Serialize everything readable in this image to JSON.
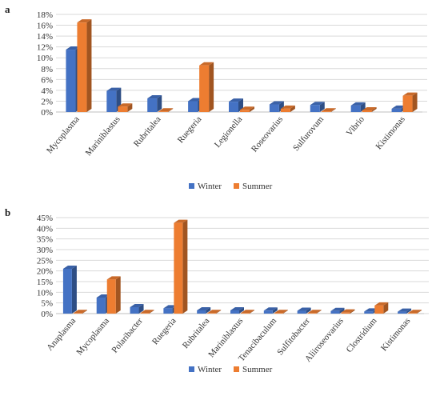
{
  "chart_data": [
    {
      "panel": "a",
      "type": "bar",
      "categories": [
        "Mycoplasma",
        "Mariniblastus",
        "Rubritalea",
        "Ruegeria",
        "Legionella",
        "Roseovarius",
        "Sulfurovum",
        "Vibrio",
        "Kistimonas"
      ],
      "series": [
        {
          "name": "Winter",
          "color": "#4472C4",
          "values": [
            11.5,
            3.9,
            2.5,
            2.0,
            1.9,
            1.4,
            1.3,
            1.2,
            0.6
          ]
        },
        {
          "name": "Summer",
          "color": "#ED7D31",
          "values": [
            16.5,
            1.0,
            0.1,
            8.6,
            0.4,
            0.6,
            0.1,
            0.3,
            3.0
          ]
        }
      ],
      "yticks": [
        "0%",
        "2%",
        "4%",
        "6%",
        "8%",
        "10%",
        "12%",
        "14%",
        "16%",
        "18%"
      ],
      "ylim": [
        0,
        18
      ],
      "grid": true,
      "legend_position": "bottom"
    },
    {
      "panel": "b",
      "type": "bar",
      "categories": [
        "Anaplasma",
        "Mycoplasma",
        "Polaribacter",
        "Ruegeria",
        "Rubritalea",
        "Mariniblastus",
        "Tenacibaculum",
        "Sulfitobacter",
        "Aliiroseovarius",
        "Clostridium",
        "Kistimonas"
      ],
      "series": [
        {
          "name": "Winter",
          "color": "#4472C4",
          "values": [
            21.0,
            7.5,
            3.0,
            2.5,
            1.5,
            1.5,
            1.4,
            1.3,
            1.2,
            1.0,
            0.9
          ]
        },
        {
          "name": "Summer",
          "color": "#ED7D31",
          "values": [
            0.1,
            16.0,
            0.2,
            42.5,
            0.1,
            0.2,
            0.1,
            0.1,
            0.5,
            3.8,
            0.1
          ]
        }
      ],
      "yticks": [
        "0%",
        "5%",
        "10%",
        "15%",
        "20%",
        "25%",
        "30%",
        "35%",
        "40%",
        "45%"
      ],
      "ylim": [
        0,
        45
      ],
      "grid": true,
      "legend_position": "bottom"
    }
  ]
}
